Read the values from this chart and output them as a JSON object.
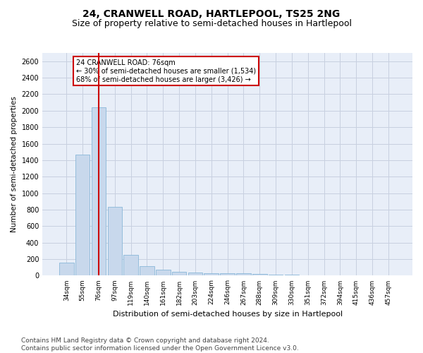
{
  "title": "24, CRANWELL ROAD, HARTLEPOOL, TS25 2NG",
  "subtitle": "Size of property relative to semi-detached houses in Hartlepool",
  "xlabel": "Distribution of semi-detached houses by size in Hartlepool",
  "ylabel": "Number of semi-detached properties",
  "categories": [
    "34sqm",
    "55sqm",
    "76sqm",
    "97sqm",
    "119sqm",
    "140sqm",
    "161sqm",
    "182sqm",
    "203sqm",
    "224sqm",
    "246sqm",
    "267sqm",
    "288sqm",
    "309sqm",
    "330sqm",
    "351sqm",
    "372sqm",
    "394sqm",
    "415sqm",
    "436sqm",
    "457sqm"
  ],
  "values": [
    155,
    1470,
    2040,
    835,
    255,
    115,
    70,
    45,
    35,
    30,
    30,
    30,
    20,
    10,
    8,
    5,
    4,
    3,
    2,
    1,
    1
  ],
  "bar_color": "#c8d8ec",
  "bar_edgecolor": "#7aafd4",
  "property_bar_index": 2,
  "property_line_color": "#cc0000",
  "annotation_text": "24 CRANWELL ROAD: 76sqm\n← 30% of semi-detached houses are smaller (1,534)\n68% of semi-detached houses are larger (3,426) →",
  "annotation_box_color": "#ffffff",
  "annotation_box_edgecolor": "#cc0000",
  "ylim": [
    0,
    2700
  ],
  "yticks": [
    0,
    200,
    400,
    600,
    800,
    1000,
    1200,
    1400,
    1600,
    1800,
    2000,
    2200,
    2400,
    2600
  ],
  "background_color": "#ffffff",
  "plot_bg_color": "#e8eef8",
  "grid_color": "#c8d0e0",
  "title_fontsize": 10,
  "subtitle_fontsize": 9,
  "footer_text": "Contains HM Land Registry data © Crown copyright and database right 2024.\nContains public sector information licensed under the Open Government Licence v3.0.",
  "footer_fontsize": 6.5
}
